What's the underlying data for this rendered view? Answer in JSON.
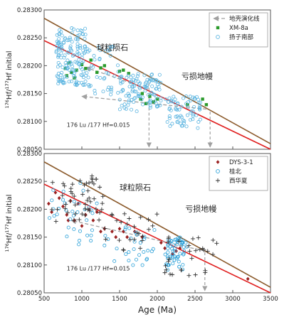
{
  "chart_data": [
    {
      "type": "scatter",
      "panel": "top",
      "ylabel_parts": [
        "176",
        "Hf/",
        "177",
        "Hf initial"
      ],
      "ylim": [
        0.2805,
        0.283
      ],
      "yticks": [
        "0.28050",
        "0.28100",
        "0.28150",
        "0.28200",
        "0.28250",
        "0.28300"
      ],
      "xlim": [
        500,
        3500
      ],
      "reference_lines": [
        {
          "name": "亏损地幔",
          "color": "#8b5a2b",
          "x": [
            500,
            3500
          ],
          "y": [
            0.28285,
            0.2806
          ]
        },
        {
          "name": "球粒陨石",
          "color": "#e02020",
          "x": [
            500,
            3500
          ],
          "y": [
            0.28245,
            0.2805
          ]
        }
      ],
      "evolution_arrows": [
        {
          "x": [
            1800,
            1050
          ],
          "y": [
            0.28162,
            0.28197
          ]
        },
        {
          "x": [
            2650,
            1000
          ],
          "y": [
            0.28122,
            0.28145
          ]
        }
      ],
      "age_markers": [
        1890,
        2700
      ],
      "annotations": [
        {
          "text": "球粒陨石",
          "x": 1200,
          "y": 0.28228
        },
        {
          "text": "亏损地幔",
          "x": 2320,
          "y": 0.28176
        },
        {
          "text": "176 Lu /177 Hf=0.015",
          "x": 800,
          "y": 0.2809
        }
      ],
      "legend": {
        "placement": "top-right",
        "entries": [
          "地壳演化线",
          "XM-8a",
          "扬子南部"
        ]
      },
      "series": [
        {
          "name": "XM-8a",
          "marker": "filled-square",
          "color": "#2a9a2a",
          "x": [
            780,
            800,
            830,
            860,
            900,
            930,
            1000,
            1050,
            1120,
            1200,
            1250,
            1300,
            1500,
            1550,
            1620,
            1780,
            1800,
            1850,
            1900,
            1950,
            2000,
            2400,
            2600,
            2650
          ],
          "y": [
            0.28195,
            0.28182,
            0.28205,
            0.28188,
            0.28178,
            0.28192,
            0.28202,
            0.28195,
            0.2821,
            0.28188,
            0.28196,
            0.282,
            0.2819,
            0.28192,
            0.28186,
            0.2814,
            0.2815,
            0.28132,
            0.28145,
            0.28135,
            0.2814,
            0.2813,
            0.2814,
            0.2813
          ]
        },
        {
          "name": "扬子南部",
          "marker": "open-circle",
          "color": "#5ab4e0",
          "clusters": [
            {
              "x_range": [
                650,
                1050
              ],
              "y_range": [
                0.28165,
                0.28268
              ],
              "n": 150
            },
            {
              "x_range": [
                1050,
                1500
              ],
              "y_range": [
                0.28148,
                0.28236
              ],
              "n": 45
            },
            {
              "x_range": [
                1500,
                2050
              ],
              "y_range": [
                0.28118,
                0.28186
              ],
              "n": 110
            },
            {
              "x_range": [
                2100,
                2600
              ],
              "y_range": [
                0.28088,
                0.28145
              ],
              "n": 70
            }
          ]
        }
      ]
    },
    {
      "type": "scatter",
      "panel": "bottom",
      "ylabel_parts": [
        "176",
        "Hf/",
        "177",
        "Hf initial"
      ],
      "ylim": [
        0.2805,
        0.283
      ],
      "yticks": [
        "0.28050",
        "0.28100",
        "0.28150",
        "0.28200",
        "0.28250",
        "0.28300"
      ],
      "xlabel": "Age (Ma)",
      "xlim": [
        500,
        3500
      ],
      "xticks": [
        "500",
        "1000",
        "1500",
        "2000",
        "2500",
        "3000",
        "3500"
      ],
      "reference_lines": [
        {
          "name": "亏损地幔",
          "color": "#8b5a2b",
          "x": [
            500,
            3500
          ],
          "y": [
            0.28285,
            0.2806
          ]
        },
        {
          "name": "球粒陨石",
          "color": "#e02020",
          "x": [
            500,
            3500
          ],
          "y": [
            0.28245,
            0.2805
          ]
        }
      ],
      "evolution_arrows": [
        {
          "x": [
            2630,
            860
          ],
          "y": [
            0.28125,
            0.2818
          ]
        }
      ],
      "age_markers": [
        2630
      ],
      "annotations": [
        {
          "text": "球粒陨石",
          "x": 1500,
          "y": 0.28234
        },
        {
          "text": "亏损地幔",
          "x": 2370,
          "y": 0.28196
        },
        {
          "text": "176 Lu /177 Hf=0.015",
          "x": 800,
          "y": 0.2809
        }
      ],
      "legend": {
        "placement": "top-right",
        "entries": [
          "DYS-3-1",
          "桂北",
          "西华夏"
        ]
      },
      "series": [
        {
          "name": "DYS-3-1",
          "marker": "filled-diamond",
          "color": "#9a2020",
          "x": [
            560,
            600,
            650,
            700,
            750,
            800,
            820,
            850,
            900,
            950,
            1000,
            1050,
            1100,
            1150,
            1200,
            1250,
            1300,
            1400,
            1450,
            1500,
            1550,
            1600,
            1700,
            1800,
            2050,
            2100,
            2200,
            2250,
            2300,
            3200
          ],
          "y": [
            0.2821,
            0.28195,
            0.2823,
            0.2822,
            0.28205,
            0.2819,
            0.2818,
            0.28215,
            0.2818,
            0.2821,
            0.2817,
            0.2819,
            0.282,
            0.2818,
            0.28195,
            0.2816,
            0.28165,
            0.2816,
            0.2815,
            0.28165,
            0.2816,
            0.2815,
            0.2816,
            0.2815,
            0.2814,
            0.2813,
            0.2812,
            0.28125,
            0.2813,
            0.28075
          ]
        },
        {
          "name": "桂北",
          "marker": "open-circle",
          "color": "#2aa0d8",
          "clusters": [
            {
              "x_range": [
                550,
                1200
              ],
              "y_range": [
                0.28135,
                0.28248
              ],
              "n": 35
            },
            {
              "x_range": [
                1300,
                2000
              ],
              "y_range": [
                0.2809,
                0.28175
              ],
              "n": 30
            },
            {
              "x_range": [
                2100,
                2400
              ],
              "y_range": [
                0.2809,
                0.2815
              ],
              "n": 60
            }
          ]
        },
        {
          "name": "西华夏",
          "marker": "plus",
          "color": "#333333",
          "clusters": [
            {
              "x_range": [
                600,
                1300
              ],
              "y_range": [
                0.28175,
                0.2826
              ],
              "n": 50
            },
            {
              "x_range": [
                1300,
                2000
              ],
              "y_range": [
                0.2812,
                0.28195
              ],
              "n": 25
            },
            {
              "x_range": [
                2100,
                2800
              ],
              "y_range": [
                0.2808,
                0.2815
              ],
              "n": 30
            }
          ]
        }
      ]
    }
  ]
}
